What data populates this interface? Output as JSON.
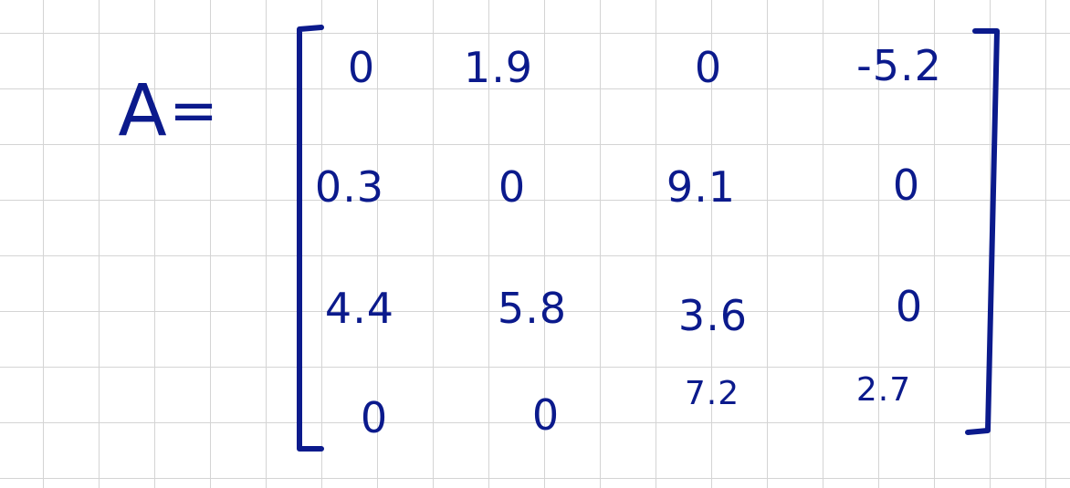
{
  "matrix": {
    "name": "A",
    "equals": "=",
    "rows": [
      [
        "0",
        "1.9",
        "0",
        "-5.2"
      ],
      [
        "0.3",
        "0",
        "9.1",
        "0"
      ],
      [
        "4.4",
        "5.8",
        "3.6",
        "0"
      ],
      [
        "0",
        "0",
        "7.2",
        "2.7"
      ]
    ]
  },
  "colors": {
    "ink": "#0b1a8c",
    "grid": "#d4d4d4",
    "paper": "#ffffff"
  }
}
